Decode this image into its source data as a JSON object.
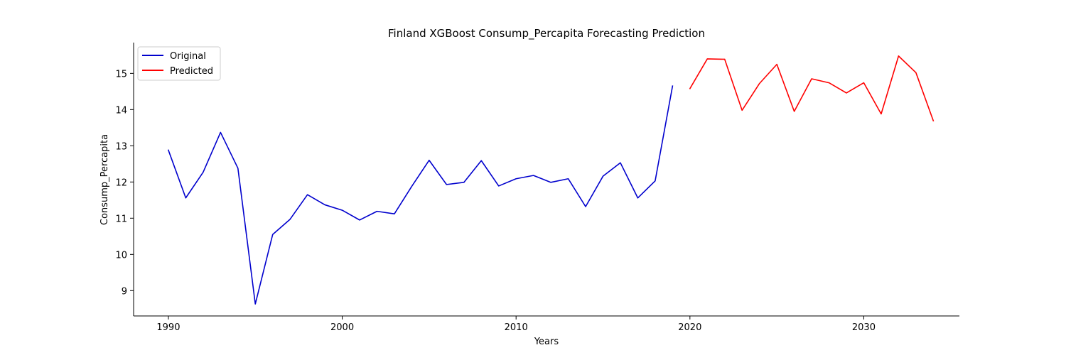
{
  "chart_data": {
    "type": "line",
    "title": "Finland XGBoost Consump_Percapita Forecasting Prediction",
    "xlabel": "Years",
    "ylabel": "Consump_Percapita",
    "xlim": [
      1988,
      2035.5
    ],
    "ylim": [
      8.3,
      15.85
    ],
    "xticks": [
      1990,
      2000,
      2010,
      2020,
      2030
    ],
    "yticks": [
      9,
      10,
      11,
      12,
      13,
      14,
      15
    ],
    "grid": false,
    "legend_position": "top-left",
    "series": [
      {
        "name": "Original",
        "color": "#0000cd",
        "x": [
          1990,
          1991,
          1992,
          1993,
          1994,
          1995,
          1996,
          1997,
          1998,
          1999,
          2000,
          2001,
          2002,
          2003,
          2004,
          2005,
          2006,
          2007,
          2008,
          2009,
          2010,
          2011,
          2012,
          2013,
          2014,
          2015,
          2016,
          2017,
          2018,
          2019
        ],
        "values": [
          12.88,
          11.56,
          12.27,
          13.37,
          12.38,
          8.63,
          10.55,
          10.97,
          11.65,
          11.37,
          11.22,
          10.95,
          11.19,
          11.12,
          11.88,
          12.6,
          11.93,
          11.99,
          12.59,
          11.89,
          12.09,
          12.18,
          11.99,
          12.09,
          11.32,
          12.16,
          12.53,
          11.56,
          12.03,
          14.65
        ]
      },
      {
        "name": "Predicted",
        "color": "#ff0000",
        "x": [
          2020,
          2021,
          2022,
          2023,
          2024,
          2025,
          2026,
          2027,
          2028,
          2029,
          2030,
          2031,
          2032,
          2033,
          2034
        ],
        "values": [
          14.58,
          15.4,
          15.39,
          13.98,
          14.72,
          15.25,
          13.95,
          14.85,
          14.74,
          14.46,
          14.74,
          13.88,
          15.48,
          15.02,
          13.69
        ]
      }
    ]
  }
}
